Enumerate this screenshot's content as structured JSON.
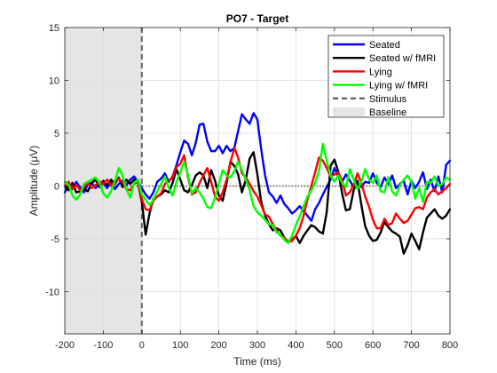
{
  "chart_data": {
    "type": "line",
    "title": "PO7 - Target",
    "xlabel": "Time (ms)",
    "ylabel": "Amplitude (μV)",
    "xlim": [
      -200,
      800
    ],
    "ylim": [
      -14,
      15
    ],
    "xticks": [
      -200,
      -100,
      0,
      100,
      200,
      300,
      400,
      500,
      600,
      700,
      800
    ],
    "yticks": [
      -10,
      -5,
      0,
      5,
      10,
      15
    ],
    "grid": true,
    "legend_position": "top-right",
    "baseline": {
      "label": "Baseline",
      "x_start": -200,
      "x_end": 0,
      "color": "#e5e5e5"
    },
    "stimulus": {
      "label": "Stimulus",
      "x": 0,
      "color": "#666666"
    },
    "zero_line_color": "#555555",
    "series": [
      {
        "name": "Seated",
        "color": "#0000ff",
        "x": [
          -200,
          -190,
          -180,
          -170,
          -160,
          -150,
          -140,
          -130,
          -120,
          -110,
          -100,
          -90,
          -80,
          -70,
          -60,
          -50,
          -40,
          -30,
          -20,
          -10,
          0,
          10,
          20,
          30,
          40,
          50,
          60,
          70,
          80,
          90,
          100,
          110,
          120,
          130,
          140,
          150,
          160,
          170,
          180,
          190,
          200,
          210,
          220,
          230,
          240,
          250,
          260,
          270,
          280,
          290,
          300,
          310,
          320,
          330,
          340,
          350,
          360,
          370,
          380,
          390,
          400,
          410,
          420,
          430,
          440,
          450,
          460,
          470,
          480,
          490,
          500,
          510,
          520,
          530,
          540,
          550,
          560,
          570,
          580,
          590,
          600,
          610,
          620,
          630,
          640,
          650,
          660,
          670,
          680,
          690,
          700,
          710,
          720,
          730,
          740,
          750,
          760,
          770,
          780,
          790,
          800
        ],
        "values": [
          -0.6,
          0.1,
          -0.3,
          0.4,
          -0.2,
          -0.6,
          0.2,
          0.3,
          -0.2,
          0.2,
          0.3,
          -0.2,
          0.4,
          -0.3,
          0.2,
          0.5,
          0.1,
          0.6,
          0.9,
          0.4,
          -0.2,
          -0.8,
          -1.2,
          -0.6,
          0.4,
          0.7,
          1.2,
          0.4,
          0.9,
          2.0,
          3.2,
          4.3,
          4.0,
          2.9,
          4.1,
          5.8,
          5.9,
          4.2,
          3.3,
          3.3,
          3.8,
          3.1,
          3.8,
          3.3,
          3.6,
          5.2,
          6.8,
          6.3,
          5.9,
          6.9,
          6.3,
          3.5,
          1.0,
          -0.6,
          -1.0,
          -1.6,
          -0.9,
          -1.7,
          -2.1,
          -2.6,
          -2.3,
          -1.9,
          -2.4,
          -2.8,
          -3.3,
          -2.2,
          -1.6,
          -0.8,
          -0.1,
          0.6,
          1.7,
          0.9,
          0.4,
          1.1,
          0.5,
          -0.1,
          0.2,
          -0.1,
          0.4,
          0.3,
          1.2,
          0.3,
          -0.1,
          0.8,
          0.2,
          1.0,
          -0.2,
          0.2,
          0.5,
          -0.8,
          0.5,
          -0.2,
          0.4,
          1.3,
          -0.3,
          0.6,
          -0.5,
          0.9,
          -0.6,
          2.0,
          2.4
        ]
      },
      {
        "name": "Seated w/ fMRI",
        "color": "#000000",
        "x": [
          -200,
          -190,
          -180,
          -170,
          -160,
          -150,
          -140,
          -130,
          -120,
          -110,
          -100,
          -90,
          -80,
          -70,
          -60,
          -50,
          -40,
          -30,
          -20,
          -10,
          0,
          10,
          20,
          30,
          40,
          50,
          60,
          70,
          80,
          90,
          100,
          110,
          120,
          130,
          140,
          150,
          160,
          170,
          180,
          190,
          200,
          210,
          220,
          230,
          240,
          250,
          260,
          270,
          280,
          290,
          300,
          310,
          320,
          330,
          340,
          350,
          360,
          370,
          380,
          390,
          400,
          410,
          420,
          430,
          440,
          450,
          460,
          470,
          480,
          490,
          500,
          510,
          520,
          530,
          540,
          550,
          560,
          570,
          580,
          590,
          600,
          610,
          620,
          630,
          640,
          650,
          660,
          670,
          680,
          690,
          700,
          710,
          720,
          730,
          740,
          750,
          760,
          770,
          780,
          790,
          800
        ],
        "values": [
          0.0,
          -0.4,
          0.3,
          -0.6,
          -0.5,
          -0.3,
          -0.5,
          0.3,
          0.6,
          -0.1,
          0.5,
          0.1,
          0.6,
          0.2,
          0.8,
          -0.1,
          0.6,
          0.2,
          0.6,
          0.3,
          -1.5,
          -4.6,
          -2.6,
          -1.2,
          -1.0,
          -0.8,
          -0.4,
          -0.6,
          0.3,
          1.6,
          0.6,
          -0.4,
          -0.6,
          0.1,
          1.0,
          1.3,
          1.0,
          -0.2,
          1.5,
          0.5,
          -0.9,
          -1.4,
          0.3,
          2.3,
          1.9,
          1.1,
          -0.6,
          0.6,
          2.6,
          3.2,
          1.1,
          -1.5,
          -2.8,
          -3.6,
          -4.2,
          -4.0,
          -4.2,
          -4.9,
          -5.3,
          -5.1,
          -4.7,
          -5.4,
          -4.7,
          -4.2,
          -3.7,
          -3.9,
          -4.3,
          -4.5,
          -2.5,
          1.9,
          2.5,
          1.4,
          -0.7,
          -2.3,
          -2.2,
          -0.4,
          0.5,
          -1.8,
          -3.8,
          -4.7,
          -5.2,
          -5.1,
          -4.4,
          -3.4,
          -3.9,
          -4.3,
          -4.5,
          -4.8,
          -6.4,
          -5.6,
          -4.5,
          -5.2,
          -6.0,
          -4.4,
          -3.0,
          -2.6,
          -2.2,
          -2.8,
          -3.1,
          -2.8,
          -2.2
        ]
      },
      {
        "name": "Lying",
        "color": "#ff0000",
        "x": [
          -200,
          -190,
          -180,
          -170,
          -160,
          -150,
          -140,
          -130,
          -120,
          -110,
          -100,
          -90,
          -80,
          -70,
          -60,
          -50,
          -40,
          -30,
          -20,
          -10,
          0,
          10,
          20,
          30,
          40,
          50,
          60,
          70,
          80,
          90,
          100,
          110,
          120,
          130,
          140,
          150,
          160,
          170,
          180,
          190,
          200,
          210,
          220,
          230,
          240,
          250,
          260,
          270,
          280,
          290,
          300,
          310,
          320,
          330,
          340,
          350,
          360,
          370,
          380,
          390,
          400,
          410,
          420,
          430,
          440,
          450,
          460,
          470,
          480,
          490,
          500,
          510,
          520,
          530,
          540,
          550,
          560,
          570,
          580,
          590,
          600,
          610,
          620,
          630,
          640,
          650,
          660,
          670,
          680,
          690,
          700,
          710,
          720,
          730,
          740,
          750,
          760,
          770,
          780,
          790,
          800
        ],
        "values": [
          0.0,
          0.4,
          -0.3,
          0.1,
          -0.4,
          -0.1,
          0.3,
          -0.2,
          0.1,
          0.4,
          0.2,
          0.6,
          0.0,
          0.5,
          0.7,
          0.3,
          -0.3,
          -0.4,
          0.2,
          0.4,
          -1.2,
          -2.2,
          -2.3,
          -1.4,
          -1.0,
          -0.7,
          0.2,
          0.5,
          0.8,
          1.8,
          2.1,
          2.9,
          0.8,
          -0.8,
          -0.6,
          0.3,
          1.0,
          1.7,
          0.4,
          -1.0,
          -1.4,
          -0.6,
          0.6,
          2.2,
          3.6,
          2.7,
          1.2,
          0.8,
          0.2,
          -0.5,
          -1.0,
          -1.8,
          -2.7,
          -2.9,
          -3.6,
          -4.2,
          -4.7,
          -4.9,
          -5.3,
          -5.2,
          -4.7,
          -4.0,
          -2.8,
          -1.3,
          0.0,
          1.3,
          2.7,
          2.4,
          1.7,
          0.9,
          1.1,
          1.3,
          0.5,
          -0.9,
          -0.6,
          0.1,
          1.2,
          0.3,
          -1.0,
          -2.0,
          -3.2,
          -4.0,
          -4.0,
          -3.1,
          -3.7,
          -3.5,
          -2.6,
          -3.1,
          -3.5,
          -3.3,
          -2.7,
          -2.1,
          -2.0,
          -2.2,
          -1.1,
          -0.6,
          -0.3,
          -0.8,
          -0.5,
          -0.2,
          0.2
        ]
      },
      {
        "name": "Lying w/ fMRI",
        "color": "#00ff00",
        "x": [
          -200,
          -190,
          -180,
          -170,
          -160,
          -150,
          -140,
          -130,
          -120,
          -110,
          -100,
          -90,
          -80,
          -70,
          -60,
          -50,
          -40,
          -30,
          -20,
          -10,
          0,
          10,
          20,
          30,
          40,
          50,
          60,
          70,
          80,
          90,
          100,
          110,
          120,
          130,
          140,
          150,
          160,
          170,
          180,
          190,
          200,
          210,
          220,
          230,
          240,
          250,
          260,
          270,
          280,
          290,
          300,
          310,
          320,
          330,
          340,
          350,
          360,
          370,
          380,
          390,
          400,
          410,
          420,
          430,
          440,
          450,
          460,
          470,
          480,
          490,
          500,
          510,
          520,
          530,
          540,
          550,
          560,
          570,
          580,
          590,
          600,
          610,
          620,
          630,
          640,
          650,
          660,
          670,
          680,
          690,
          700,
          710,
          720,
          730,
          740,
          750,
          760,
          770,
          780,
          790,
          800
        ],
        "values": [
          0.4,
          0.1,
          -0.9,
          -1.3,
          -0.8,
          0.2,
          0.4,
          0.6,
          0.8,
          0.3,
          -0.7,
          -1.1,
          -0.5,
          0.4,
          1.7,
          1.0,
          -0.3,
          -1.1,
          0.3,
          0.6,
          -0.8,
          -1.3,
          -1.8,
          -1.3,
          -0.5,
          0.2,
          0.9,
          -0.2,
          -0.9,
          0.4,
          1.3,
          2.3,
          1.0,
          -0.7,
          -0.2,
          -0.6,
          -1.2,
          -2.0,
          -2.1,
          -1.1,
          0.2,
          1.5,
          1.0,
          0.8,
          1.4,
          2.3,
          1.5,
          0.6,
          -0.4,
          -1.9,
          -2.5,
          -2.8,
          -3.2,
          -3.6,
          -3.7,
          -4.4,
          -4.6,
          -5.1,
          -5.4,
          -4.7,
          -3.7,
          -2.9,
          -1.9,
          -1.0,
          -0.4,
          0.3,
          1.4,
          4.0,
          2.4,
          1.0,
          0.4,
          1.0,
          0.3,
          -0.1,
          1.6,
          0.6,
          -0.3,
          0.4,
          1.6,
          0.6,
          0.3,
          1.0,
          -0.5,
          -0.6,
          0.8,
          -0.5,
          -0.9,
          0.1,
          0.6,
          1.0,
          0.4,
          -1.2,
          -0.2,
          -1.5,
          0.4,
          0.3,
          0.9,
          0.0,
          0.2,
          0.8,
          0.6
        ]
      }
    ]
  }
}
